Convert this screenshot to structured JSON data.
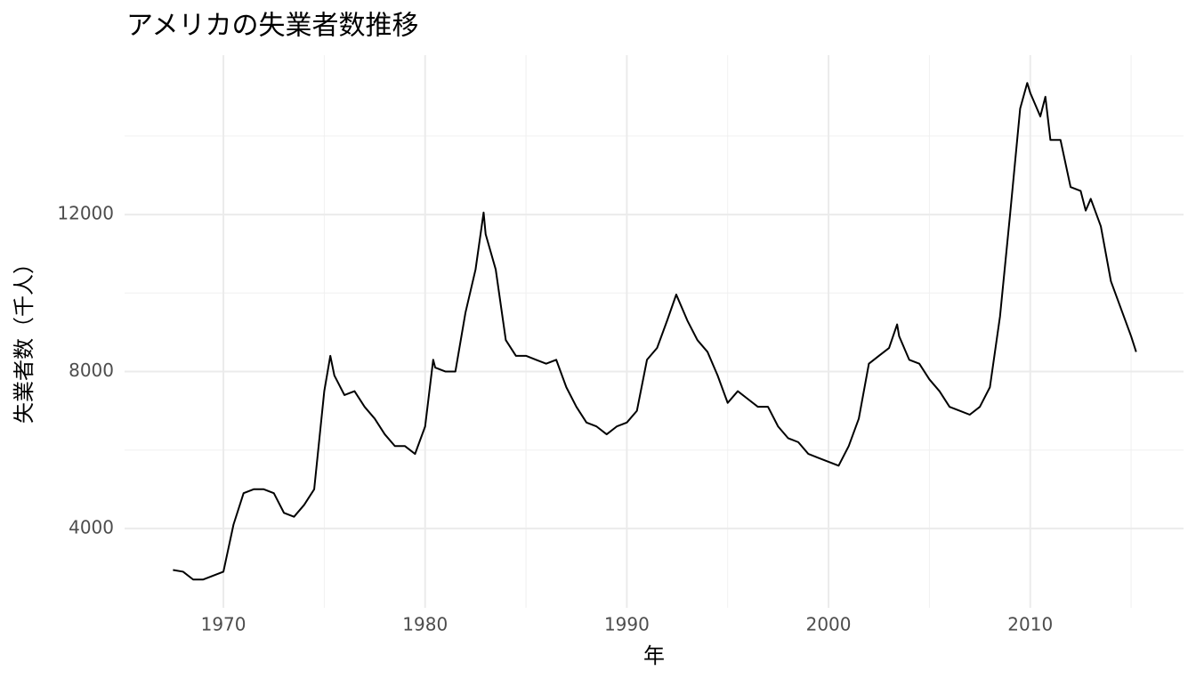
{
  "chart_data": {
    "type": "line",
    "title": "アメリカの失業者数推移",
    "x_label": "年",
    "y_label": "失業者数（千人）",
    "x": [
      1967.5,
      1968.0,
      1968.5,
      1969.0,
      1969.5,
      1970.0,
      1970.5,
      1971.0,
      1971.5,
      1972.0,
      1972.5,
      1973.0,
      1973.5,
      1974.0,
      1974.5,
      1975.0,
      1975.3,
      1975.5,
      1976.0,
      1976.5,
      1977.0,
      1977.5,
      1978.0,
      1978.5,
      1979.0,
      1979.5,
      1980.0,
      1980.4,
      1980.5,
      1981.0,
      1981.5,
      1982.0,
      1982.5,
      1982.9,
      1983.0,
      1983.5,
      1984.0,
      1984.5,
      1985.0,
      1985.5,
      1986.0,
      1986.5,
      1987.0,
      1987.5,
      1988.0,
      1988.5,
      1989.0,
      1989.5,
      1990.0,
      1990.5,
      1991.0,
      1991.5,
      1992.0,
      1992.45,
      1993.0,
      1993.5,
      1994.0,
      1994.5,
      1995.0,
      1995.5,
      1996.0,
      1996.5,
      1997.0,
      1997.5,
      1998.0,
      1998.5,
      1999.0,
      1999.5,
      2000.0,
      2000.5,
      2001.0,
      2001.5,
      2002.0,
      2002.5,
      2003.0,
      2003.4,
      2003.5,
      2004.0,
      2004.5,
      2005.0,
      2005.5,
      2006.0,
      2006.5,
      2007.0,
      2007.5,
      2008.0,
      2008.5,
      2009.0,
      2009.5,
      2009.85,
      2010.0,
      2010.5,
      2010.75,
      2011.0,
      2011.5,
      2012.0,
      2012.5,
      2012.75,
      2013.0,
      2013.5,
      2014.0,
      2014.5,
      2015.0,
      2015.25
    ],
    "series": [
      {
        "name": "失業者数",
        "color": "#000000",
        "values": [
          2944,
          2900,
          2700,
          2700,
          2800,
          2900,
          4100,
          4900,
          5000,
          5000,
          4900,
          4400,
          4300,
          4600,
          5000,
          7500,
          8400,
          7900,
          7400,
          7500,
          7100,
          6800,
          6400,
          6100,
          6100,
          5900,
          6600,
          8300,
          8100,
          8000,
          8000,
          9500,
          10600,
          12051,
          11500,
          10600,
          8800,
          8400,
          8400,
          8300,
          8200,
          8300,
          7600,
          7100,
          6700,
          6600,
          6400,
          6600,
          6700,
          7000,
          8300,
          8600,
          9300,
          9961,
          9300,
          8800,
          8500,
          7900,
          7200,
          7500,
          7300,
          7100,
          7100,
          6600,
          6300,
          6200,
          5900,
          5800,
          5700,
          5600,
          6100,
          6800,
          8200,
          8400,
          8600,
          9200,
          8900,
          8300,
          8200,
          7800,
          7500,
          7100,
          7000,
          6900,
          7100,
          7600,
          9400,
          12000,
          14700,
          15352,
          15100,
          14500,
          15000,
          13900,
          13900,
          12700,
          12600,
          12100,
          12400,
          11700,
          10300,
          9600,
          8900,
          8500
        ]
      }
    ],
    "xlim": [
      1965.1,
      2017.6
    ],
    "ylim": [
      1980,
      16060
    ],
    "xticks": [
      1970,
      1980,
      1990,
      2000,
      2010
    ],
    "yticks": [
      4000,
      8000,
      12000
    ],
    "minor_xticks": [
      1975,
      1985,
      1995,
      2005,
      2015
    ],
    "minor_yticks": [
      6000,
      10000,
      14000
    ],
    "grid": true
  }
}
